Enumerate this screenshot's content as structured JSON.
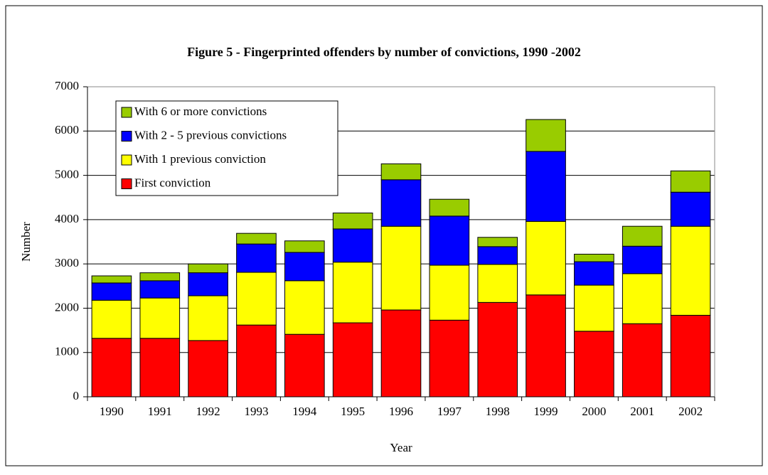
{
  "chart_data": {
    "type": "stacked_bar",
    "title": "Figure 5 - Fingerprinted offenders by number of convictions, 1990 -2002",
    "x_label": "Year",
    "y_label": "Number",
    "categories": [
      "1990",
      "1991",
      "1992",
      "1993",
      "1994",
      "1995",
      "1996",
      "1997",
      "1998",
      "1999",
      "2000",
      "2001",
      "2002"
    ],
    "series": [
      {
        "name": "First conviction",
        "color": "#ff0000",
        "values": [
          1320,
          1320,
          1270,
          1620,
          1410,
          1670,
          1960,
          1730,
          2130,
          2300,
          1480,
          1650,
          1840
        ]
      },
      {
        "name": "With 1 previous conviction",
        "color": "#ffff00",
        "values": [
          860,
          910,
          1010,
          1190,
          1210,
          1370,
          1890,
          1240,
          860,
          1660,
          1040,
          1130,
          2010
        ]
      },
      {
        "name": "With 2 - 5 previous  convictions",
        "color": "#0000ff",
        "values": [
          390,
          390,
          520,
          640,
          640,
          750,
          1050,
          1110,
          400,
          1580,
          530,
          620,
          770
        ]
      },
      {
        "name": "With 6 or more convictions",
        "color": "#99cc00",
        "values": [
          160,
          180,
          200,
          240,
          260,
          360,
          360,
          380,
          210,
          720,
          170,
          450,
          480
        ]
      }
    ],
    "ylim": [
      0,
      7000
    ],
    "yticks": [
      0,
      1000,
      2000,
      3000,
      4000,
      5000,
      6000,
      7000
    ],
    "grid": true,
    "legend": "upper left"
  }
}
